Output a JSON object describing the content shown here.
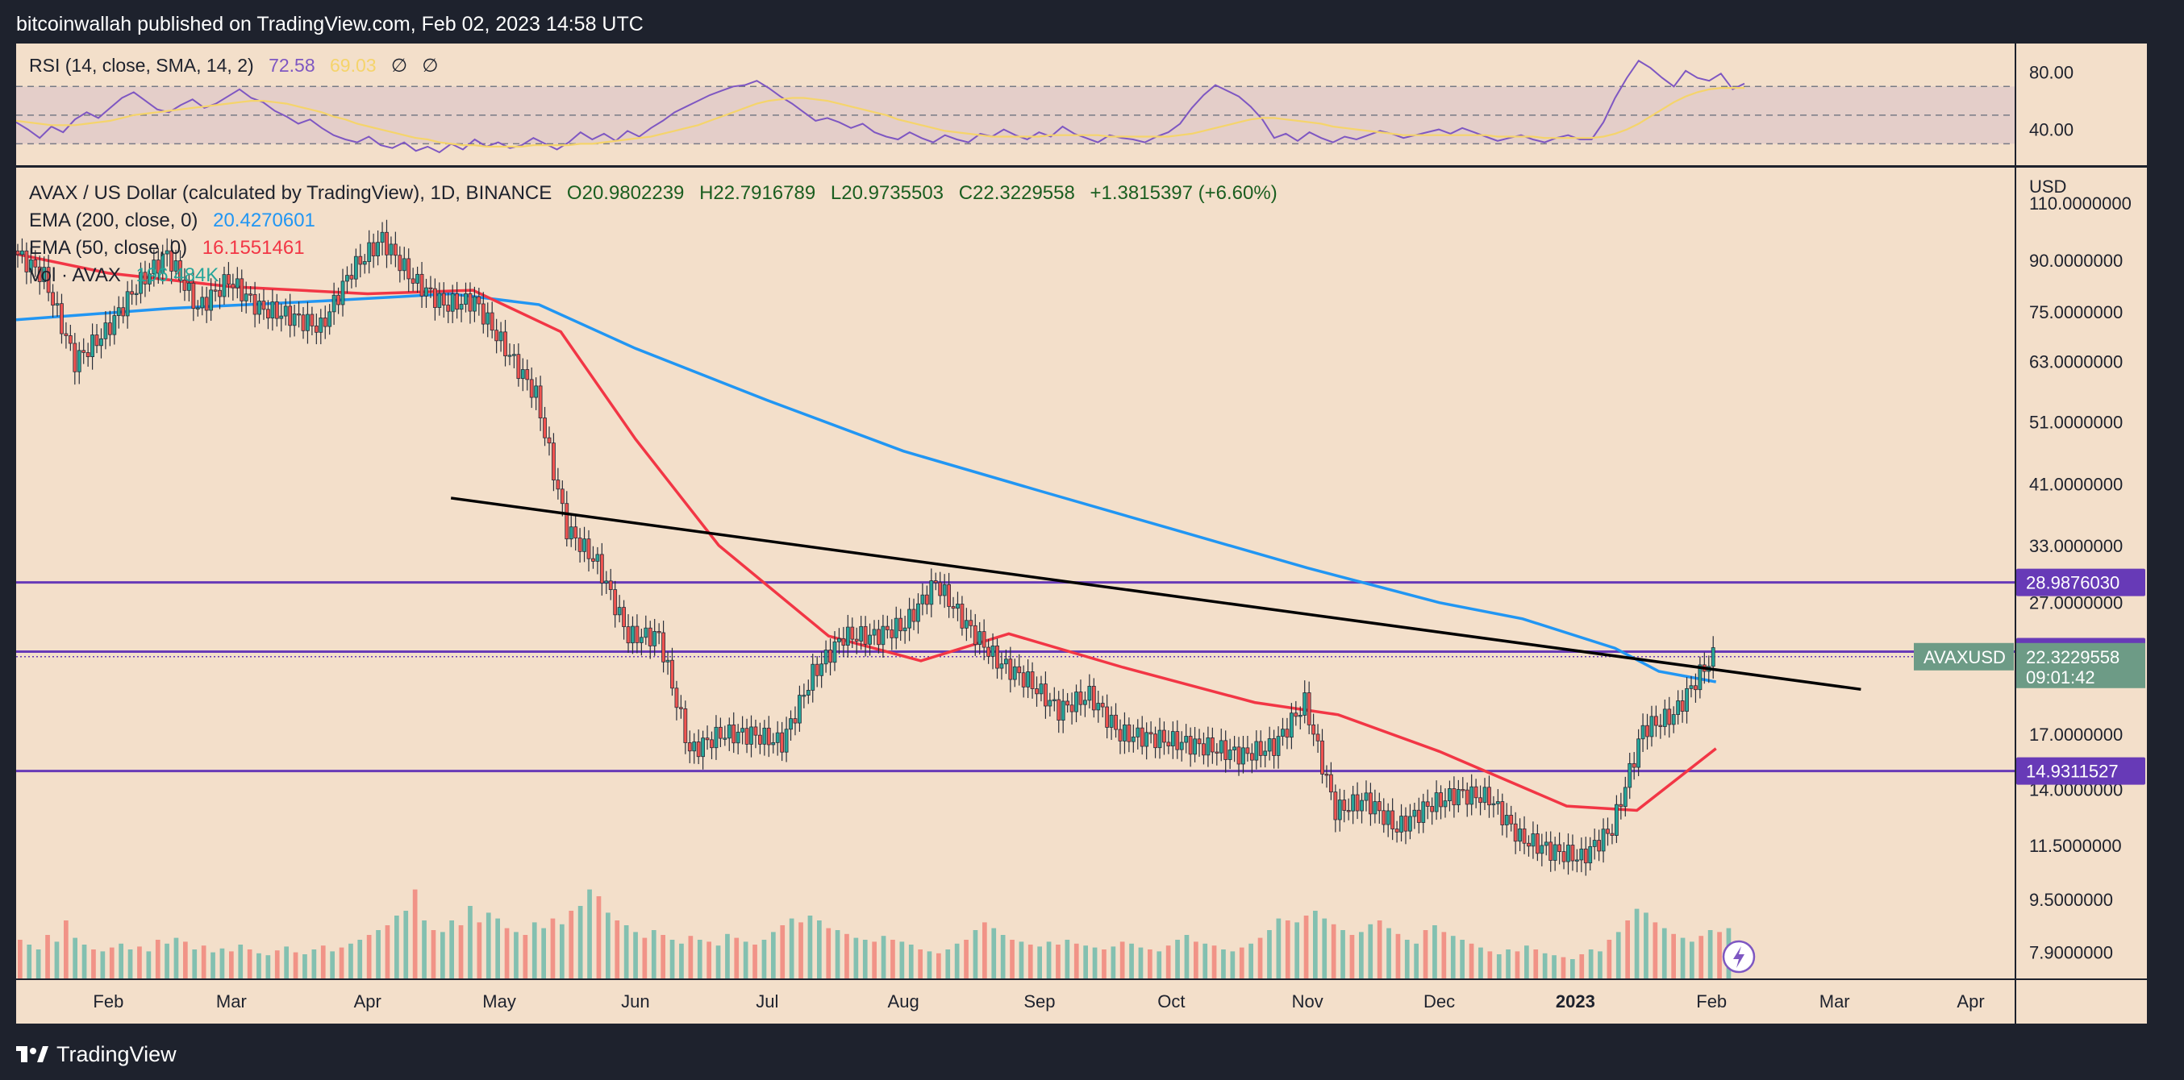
{
  "header": {
    "caption": "bitcoinwallah published on TradingView.com, Feb 02, 2023 14:58 UTC"
  },
  "footer": {
    "brand": "TradingView",
    "logo_icon": "tradingview-logo-icon"
  },
  "colors": {
    "background": "#f3dfca",
    "frame": "#1e222d",
    "up": "#26a69a",
    "down": "#ef5350",
    "ema200": "#2196f3",
    "ema50": "#f23645",
    "rsi": "#7e57c2",
    "rsi_sma": "#f5d46b",
    "level": "#673ab7",
    "trendline": "#000000",
    "price_tag": "#6d9b86"
  },
  "chart_data": [
    {
      "type": "line",
      "title": "RSI (14, close, SMA, 14, 2)",
      "legend_values": [
        "72.58",
        "69.03",
        "∅",
        "∅"
      ],
      "y_ticks": [
        "80.00",
        "40.00"
      ],
      "ylim": [
        15,
        100
      ],
      "bands": [
        70,
        50,
        30
      ],
      "series": [
        {
          "name": "RSI",
          "values": [
            45,
            40,
            34,
            42,
            38,
            47,
            52,
            48,
            55,
            62,
            66,
            60,
            54,
            52,
            57,
            61,
            55,
            58,
            63,
            68,
            62,
            59,
            53,
            49,
            44,
            47,
            41,
            36,
            33,
            31,
            35,
            29,
            27,
            31,
            25,
            28,
            24,
            30,
            26,
            33,
            28,
            31,
            27,
            29,
            34,
            30,
            26,
            31,
            38,
            33,
            37,
            32,
            39,
            35,
            41,
            46,
            52,
            56,
            60,
            64,
            67,
            70,
            71,
            74,
            69,
            63,
            58,
            52,
            46,
            48,
            45,
            41,
            44,
            38,
            35,
            33,
            38,
            34,
            31,
            36,
            33,
            31,
            37,
            35,
            40,
            36,
            33,
            38,
            35,
            42,
            37,
            34,
            31,
            36,
            34,
            33,
            31,
            35,
            38,
            44,
            55,
            64,
            71,
            67,
            63,
            56,
            47,
            34,
            37,
            32,
            38,
            34,
            31,
            35,
            33,
            36,
            39,
            37,
            34,
            36,
            38,
            40,
            37,
            41,
            38,
            35,
            32,
            34,
            36,
            33,
            31,
            34,
            36,
            33,
            33,
            45,
            62,
            76,
            88,
            83,
            76,
            70,
            81,
            76,
            74,
            79,
            68,
            72
          ]
        },
        {
          "name": "SMA",
          "values": [
            46,
            45,
            44,
            43,
            43,
            43,
            44,
            45,
            46,
            48,
            50,
            51,
            52,
            53,
            54,
            55,
            56,
            57,
            58,
            59,
            60,
            60,
            59,
            58,
            56,
            54,
            52,
            49,
            47,
            44,
            42,
            40,
            38,
            36,
            34,
            33,
            31,
            30,
            29,
            29,
            28,
            28,
            28,
            28,
            29,
            29,
            29,
            29,
            30,
            30,
            31,
            32,
            33,
            34,
            35,
            37,
            39,
            41,
            43,
            46,
            49,
            52,
            55,
            58,
            60,
            61,
            62,
            62,
            61,
            60,
            58,
            56,
            54,
            52,
            50,
            47,
            45,
            43,
            41,
            39,
            38,
            37,
            36,
            35,
            35,
            35,
            35,
            35,
            36,
            36,
            36,
            36,
            36,
            35,
            35,
            35,
            35,
            35,
            35,
            36,
            37,
            39,
            41,
            43,
            45,
            47,
            48,
            48,
            47,
            46,
            45,
            44,
            42,
            41,
            40,
            39,
            38,
            37,
            36,
            36,
            36,
            36,
            36,
            36,
            36,
            36,
            35,
            35,
            35,
            35,
            34,
            34,
            34,
            34,
            34,
            35,
            37,
            40,
            44,
            49,
            54,
            59,
            63,
            66,
            68,
            69,
            69,
            69
          ]
        }
      ]
    },
    {
      "type": "candlestick",
      "title": "AVAX / US Dollar (calculated by TradingView), 1D, BINANCE",
      "ohlc": {
        "O": "O20.9802239",
        "H": "H22.7916789",
        "L": "L20.9735503",
        "C": "C22.3229558",
        "change": "+1.3815397 (+6.60%)"
      },
      "indicators": [
        {
          "label": "EMA (200, close, 0)",
          "value": "20.4270601",
          "color": "#2196f3"
        },
        {
          "label": "EMA (50, close, 0)",
          "value": "16.1551461",
          "color": "#f23645"
        },
        {
          "label": "Vol · AVAX",
          "value": "196.484K",
          "color": "#26a69a"
        }
      ],
      "currency": "USD",
      "scale": "log",
      "ylim": [
        7.2,
        125
      ],
      "y_ticks": [
        "110.0000000",
        "90.0000000",
        "75.0000000",
        "63.0000000",
        "51.0000000",
        "41.0000000",
        "33.0000000",
        "27.0000000",
        "17.0000000",
        "14.0000000",
        "11.5000000",
        "9.5000000",
        "7.9000000"
      ],
      "x_ticks": [
        "Feb",
        "Mar",
        "Apr",
        "May",
        "Jun",
        "Jul",
        "Aug",
        "Sep",
        "Oct",
        "Nov",
        "Dec",
        "2023",
        "Feb",
        "Mar",
        "Apr"
      ],
      "x_range": [
        "2022-01-11",
        "2023-04-11"
      ],
      "horizontal_levels": [
        {
          "value": 28.987603,
          "label": "28.9876030"
        },
        {
          "value": 22.7237854,
          "label": "22.7237854"
        },
        {
          "value": 14.9311527,
          "label": "14.9311527"
        }
      ],
      "price_tag": {
        "symbol": "AVAXUSD",
        "price": "22.3229558",
        "countdown": "09:01:42",
        "value": 22.3229558
      },
      "trendline": {
        "from": {
          "date": "2022-04-20",
          "price": 39.0
        },
        "to": {
          "date": "2023-03-07",
          "price": 19.9
        }
      },
      "close": [
        {
          "date": "2022-01-11",
          "close": 93
        },
        {
          "date": "2022-01-18",
          "close": 85
        },
        {
          "date": "2022-01-25",
          "close": 63
        },
        {
          "date": "2022-02-01",
          "close": 70
        },
        {
          "date": "2022-02-08",
          "close": 82
        },
        {
          "date": "2022-02-15",
          "close": 92
        },
        {
          "date": "2022-02-22",
          "close": 76
        },
        {
          "date": "2022-03-01",
          "close": 84
        },
        {
          "date": "2022-03-08",
          "close": 76
        },
        {
          "date": "2022-03-15",
          "close": 74
        },
        {
          "date": "2022-03-22",
          "close": 71
        },
        {
          "date": "2022-03-29",
          "close": 87
        },
        {
          "date": "2022-04-05",
          "close": 97
        },
        {
          "date": "2022-04-12",
          "close": 84
        },
        {
          "date": "2022-04-19",
          "close": 77
        },
        {
          "date": "2022-04-26",
          "close": 78
        },
        {
          "date": "2022-05-03",
          "close": 66
        },
        {
          "date": "2022-05-10",
          "close": 56
        },
        {
          "date": "2022-05-17",
          "close": 35
        },
        {
          "date": "2022-05-24",
          "close": 31
        },
        {
          "date": "2022-05-31",
          "close": 24
        },
        {
          "date": "2022-06-07",
          "close": 24
        },
        {
          "date": "2022-06-14",
          "close": 16
        },
        {
          "date": "2022-06-21",
          "close": 17
        },
        {
          "date": "2022-06-28",
          "close": 17
        },
        {
          "date": "2022-07-05",
          "close": 16.5
        },
        {
          "date": "2022-07-12",
          "close": 21
        },
        {
          "date": "2022-07-19",
          "close": 24
        },
        {
          "date": "2022-07-26",
          "close": 24
        },
        {
          "date": "2022-08-02",
          "close": 25
        },
        {
          "date": "2022-08-09",
          "close": 29
        },
        {
          "date": "2022-08-16",
          "close": 25
        },
        {
          "date": "2022-08-23",
          "close": 22
        },
        {
          "date": "2022-08-30",
          "close": 20.5
        },
        {
          "date": "2022-09-06",
          "close": 18.5
        },
        {
          "date": "2022-09-13",
          "close": 19.5
        },
        {
          "date": "2022-09-20",
          "close": 17
        },
        {
          "date": "2022-09-27",
          "close": 16.8
        },
        {
          "date": "2022-10-04",
          "close": 16.5
        },
        {
          "date": "2022-10-11",
          "close": 16.2
        },
        {
          "date": "2022-10-18",
          "close": 15.8
        },
        {
          "date": "2022-10-25",
          "close": 16.3
        },
        {
          "date": "2022-11-01",
          "close": 19
        },
        {
          "date": "2022-11-08",
          "close": 13
        },
        {
          "date": "2022-11-15",
          "close": 13.5
        },
        {
          "date": "2022-11-22",
          "close": 12.2
        },
        {
          "date": "2022-11-29",
          "close": 13.2
        },
        {
          "date": "2022-12-06",
          "close": 13.8
        },
        {
          "date": "2022-12-13",
          "close": 13.6
        },
        {
          "date": "2022-12-20",
          "close": 11.8
        },
        {
          "date": "2022-12-27",
          "close": 11.3
        },
        {
          "date": "2023-01-03",
          "close": 11
        },
        {
          "date": "2023-01-10",
          "close": 12.2
        },
        {
          "date": "2023-01-17",
          "close": 17.3
        },
        {
          "date": "2023-01-24",
          "close": 18.2
        },
        {
          "date": "2023-01-31",
          "close": 21.5
        },
        {
          "date": "2023-02-02",
          "close": 22.3
        }
      ],
      "ema200": [
        {
          "date": "2022-01-11",
          "value": 73
        },
        {
          "date": "2022-02-15",
          "value": 76
        },
        {
          "date": "2022-03-22",
          "value": 78
        },
        {
          "date": "2022-04-20",
          "value": 80
        },
        {
          "date": "2022-05-10",
          "value": 77
        },
        {
          "date": "2022-06-01",
          "value": 66
        },
        {
          "date": "2022-07-01",
          "value": 55
        },
        {
          "date": "2022-08-01",
          "value": 46
        },
        {
          "date": "2022-09-01",
          "value": 40
        },
        {
          "date": "2022-10-01",
          "value": 35
        },
        {
          "date": "2022-11-01",
          "value": 30.5
        },
        {
          "date": "2022-12-01",
          "value": 27
        },
        {
          "date": "2022-12-20",
          "value": 25.5
        },
        {
          "date": "2023-01-10",
          "value": 23
        },
        {
          "date": "2023-01-20",
          "value": 21.2
        },
        {
          "date": "2023-02-02",
          "value": 20.43
        }
      ],
      "ema50": [
        {
          "date": "2022-01-11",
          "value": 92
        },
        {
          "date": "2022-02-01",
          "value": 86
        },
        {
          "date": "2022-03-01",
          "value": 82
        },
        {
          "date": "2022-04-01",
          "value": 80
        },
        {
          "date": "2022-04-25",
          "value": 81
        },
        {
          "date": "2022-05-15",
          "value": 70
        },
        {
          "date": "2022-06-01",
          "value": 48
        },
        {
          "date": "2022-06-20",
          "value": 33
        },
        {
          "date": "2022-07-15",
          "value": 24
        },
        {
          "date": "2022-08-05",
          "value": 22
        },
        {
          "date": "2022-08-25",
          "value": 24.2
        },
        {
          "date": "2022-09-20",
          "value": 21.5
        },
        {
          "date": "2022-10-20",
          "value": 19
        },
        {
          "date": "2022-11-08",
          "value": 18.2
        },
        {
          "date": "2022-12-01",
          "value": 16
        },
        {
          "date": "2022-12-30",
          "value": 13.2
        },
        {
          "date": "2023-01-15",
          "value": 13
        },
        {
          "date": "2023-02-02",
          "value": 16.16
        }
      ],
      "volume": [
        40,
        35,
        30,
        45,
        38,
        60,
        42,
        35,
        30,
        28,
        32,
        36,
        30,
        33,
        28,
        40,
        36,
        42,
        38,
        30,
        34,
        27,
        31,
        28,
        35,
        30,
        26,
        24,
        29,
        33,
        27,
        25,
        30,
        34,
        28,
        32,
        36,
        40,
        45,
        50,
        55,
        65,
        70,
        92,
        60,
        50,
        48,
        60,
        55,
        75,
        58,
        68,
        62,
        52,
        48,
        45,
        58,
        52,
        62,
        56,
        70,
        75,
        92,
        85,
        68,
        60,
        55,
        48,
        42,
        50,
        45,
        40,
        36,
        44,
        40,
        38,
        34,
        46,
        42,
        38,
        35,
        40,
        48,
        55,
        62,
        58,
        65,
        60,
        52,
        50,
        46,
        42,
        40,
        38,
        44,
        40,
        38,
        35,
        30,
        28,
        26,
        30,
        36,
        40,
        50,
        58,
        52,
        45,
        40,
        38,
        35,
        33,
        38,
        35,
        40,
        36,
        34,
        32,
        30,
        33,
        38,
        36,
        32,
        30,
        28,
        34,
        40,
        45,
        38,
        36,
        34,
        30,
        28,
        32,
        36,
        42,
        50,
        62,
        60,
        58,
        65,
        70,
        62,
        56,
        50,
        45,
        48,
        56,
        60,
        52,
        46,
        40,
        36,
        50,
        55,
        48,
        44,
        40,
        36,
        32,
        28,
        25,
        30,
        28,
        34,
        30,
        26,
        24,
        22,
        20,
        25,
        30,
        28,
        40,
        48,
        60,
        72,
        68,
        58,
        52,
        46,
        42,
        38,
        44,
        50,
        48,
        52
      ]
    }
  ]
}
